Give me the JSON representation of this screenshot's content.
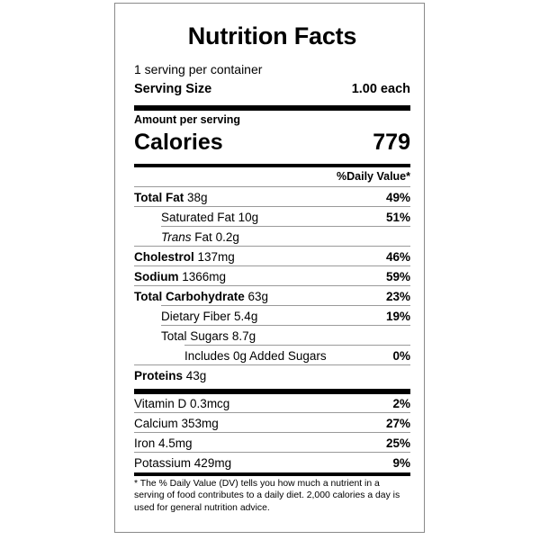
{
  "title": "Nutrition Facts",
  "servings_per_container": "1 serving per container",
  "serving_size_label": "Serving Size",
  "serving_size_value": "1.00 each",
  "amount_per_serving": "Amount per serving",
  "calories_label": "Calories",
  "calories_value": "779",
  "daily_value_header": "%Daily Value*",
  "nutrients": [
    {
      "name": "Total Fat",
      "amount": "38g",
      "dv": "49%",
      "bold": true
    },
    {
      "name": "Saturated Fat",
      "amount": "10g",
      "dv": "51%",
      "bold": false
    },
    {
      "name_italic": "Trans",
      "name": "Fat",
      "amount": "0.2g",
      "dv": "",
      "bold": false
    },
    {
      "name": "Cholestrol",
      "amount": "137mg",
      "dv": "46%",
      "bold": true
    },
    {
      "name": "Sodium",
      "amount": "1366mg",
      "dv": "59%",
      "bold": true
    },
    {
      "name": "Total Carbohydrate",
      "amount": "63g",
      "dv": "23%",
      "bold": true
    },
    {
      "name": "Dietary Fiber",
      "amount": "5.4g",
      "dv": "19%",
      "bold": false
    },
    {
      "name": "Total Sugars",
      "amount": "8.7g",
      "dv": "",
      "bold": false
    },
    {
      "name": "Includes 0g Added Sugars",
      "amount": "",
      "dv": "0%",
      "bold": false
    },
    {
      "name": "Proteins",
      "amount": "43g",
      "dv": "",
      "bold": true
    }
  ],
  "vitamins": [
    {
      "name": "Vitamin D",
      "amount": "0.3mcg",
      "dv": "2%"
    },
    {
      "name": "Calcium",
      "amount": "353mg",
      "dv": "27%"
    },
    {
      "name": "Iron",
      "amount": "4.5mg",
      "dv": "25%"
    },
    {
      "name": "Potassium",
      "amount": "429mg",
      "dv": "9%"
    }
  ],
  "footnote": "* The % Daily Value (DV) tells you how much a nutrient in a serving of food contributes to a daily diet. 2,000 calories a day is used for general nutrition advice."
}
